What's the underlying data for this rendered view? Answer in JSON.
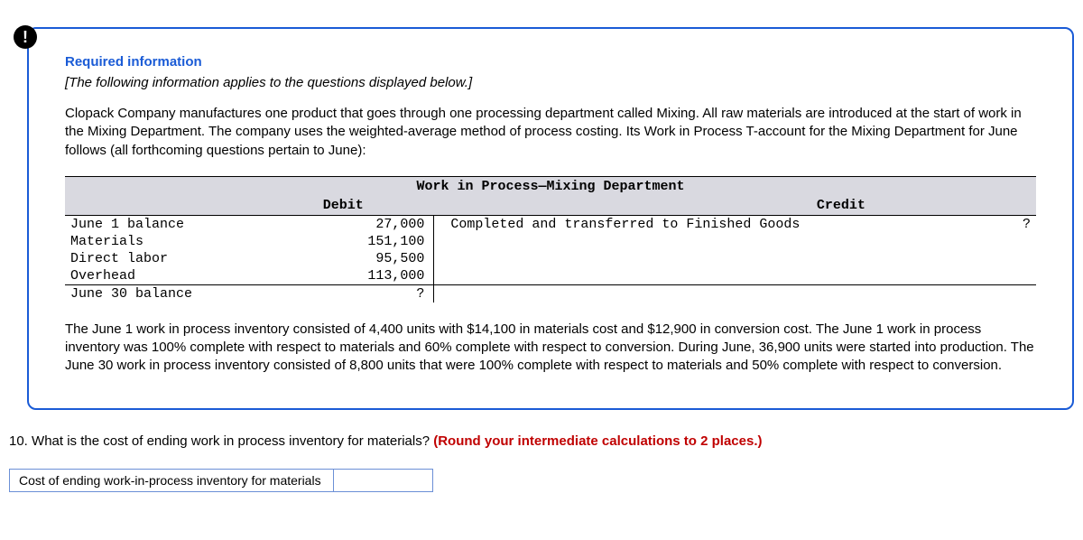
{
  "alert_icon_glyph": "!",
  "heading": "Required information",
  "italic_note": "[The following information applies to the questions displayed below.]",
  "intro_para": "Clopack Company manufactures one product that goes through one processing department called Mixing. All raw materials are introduced at the start of work in the Mixing Department. The company uses the weighted-average method of process costing. Its Work in Process T-account for the Mixing Department for June follows (all forthcoming questions pertain to June):",
  "t_account": {
    "title": "Work in Process—Mixing Department",
    "debit_header": "Debit",
    "credit_header": "Credit",
    "debit_rows": [
      {
        "label": "June 1 balance",
        "value": "27,000"
      },
      {
        "label": "Materials",
        "value": "151,100"
      },
      {
        "label": "Direct labor",
        "value": "95,500"
      },
      {
        "label": "Overhead",
        "value": "113,000"
      }
    ],
    "debit_balance": {
      "label": "June 30 balance",
      "value": "?"
    },
    "credit_rows": [
      {
        "label": "Completed and transferred to Finished Goods",
        "value": "?"
      }
    ]
  },
  "trailing_para": "The June 1 work in process inventory consisted of 4,400 units with $14,100 in materials cost and $12,900 in conversion cost. The June 1 work in process inventory was 100% complete with respect to materials and 60% complete with respect to conversion. During June, 36,900 units were started into production. The June 30 work in process inventory consisted of 8,800 units that were 100% complete with respect to materials and 50% complete with respect to conversion.",
  "question_number": "10.",
  "question_text": "What is the cost of ending work in process inventory for materials? ",
  "question_hint": "(Round your intermediate calculations to 2 places.)",
  "answer_label": "Cost of ending work-in-process inventory for materials",
  "answer_value": "",
  "colors": {
    "accent": "#1a5bd6",
    "header_bg": "#d9d9e0",
    "hint_red": "#c00000"
  }
}
